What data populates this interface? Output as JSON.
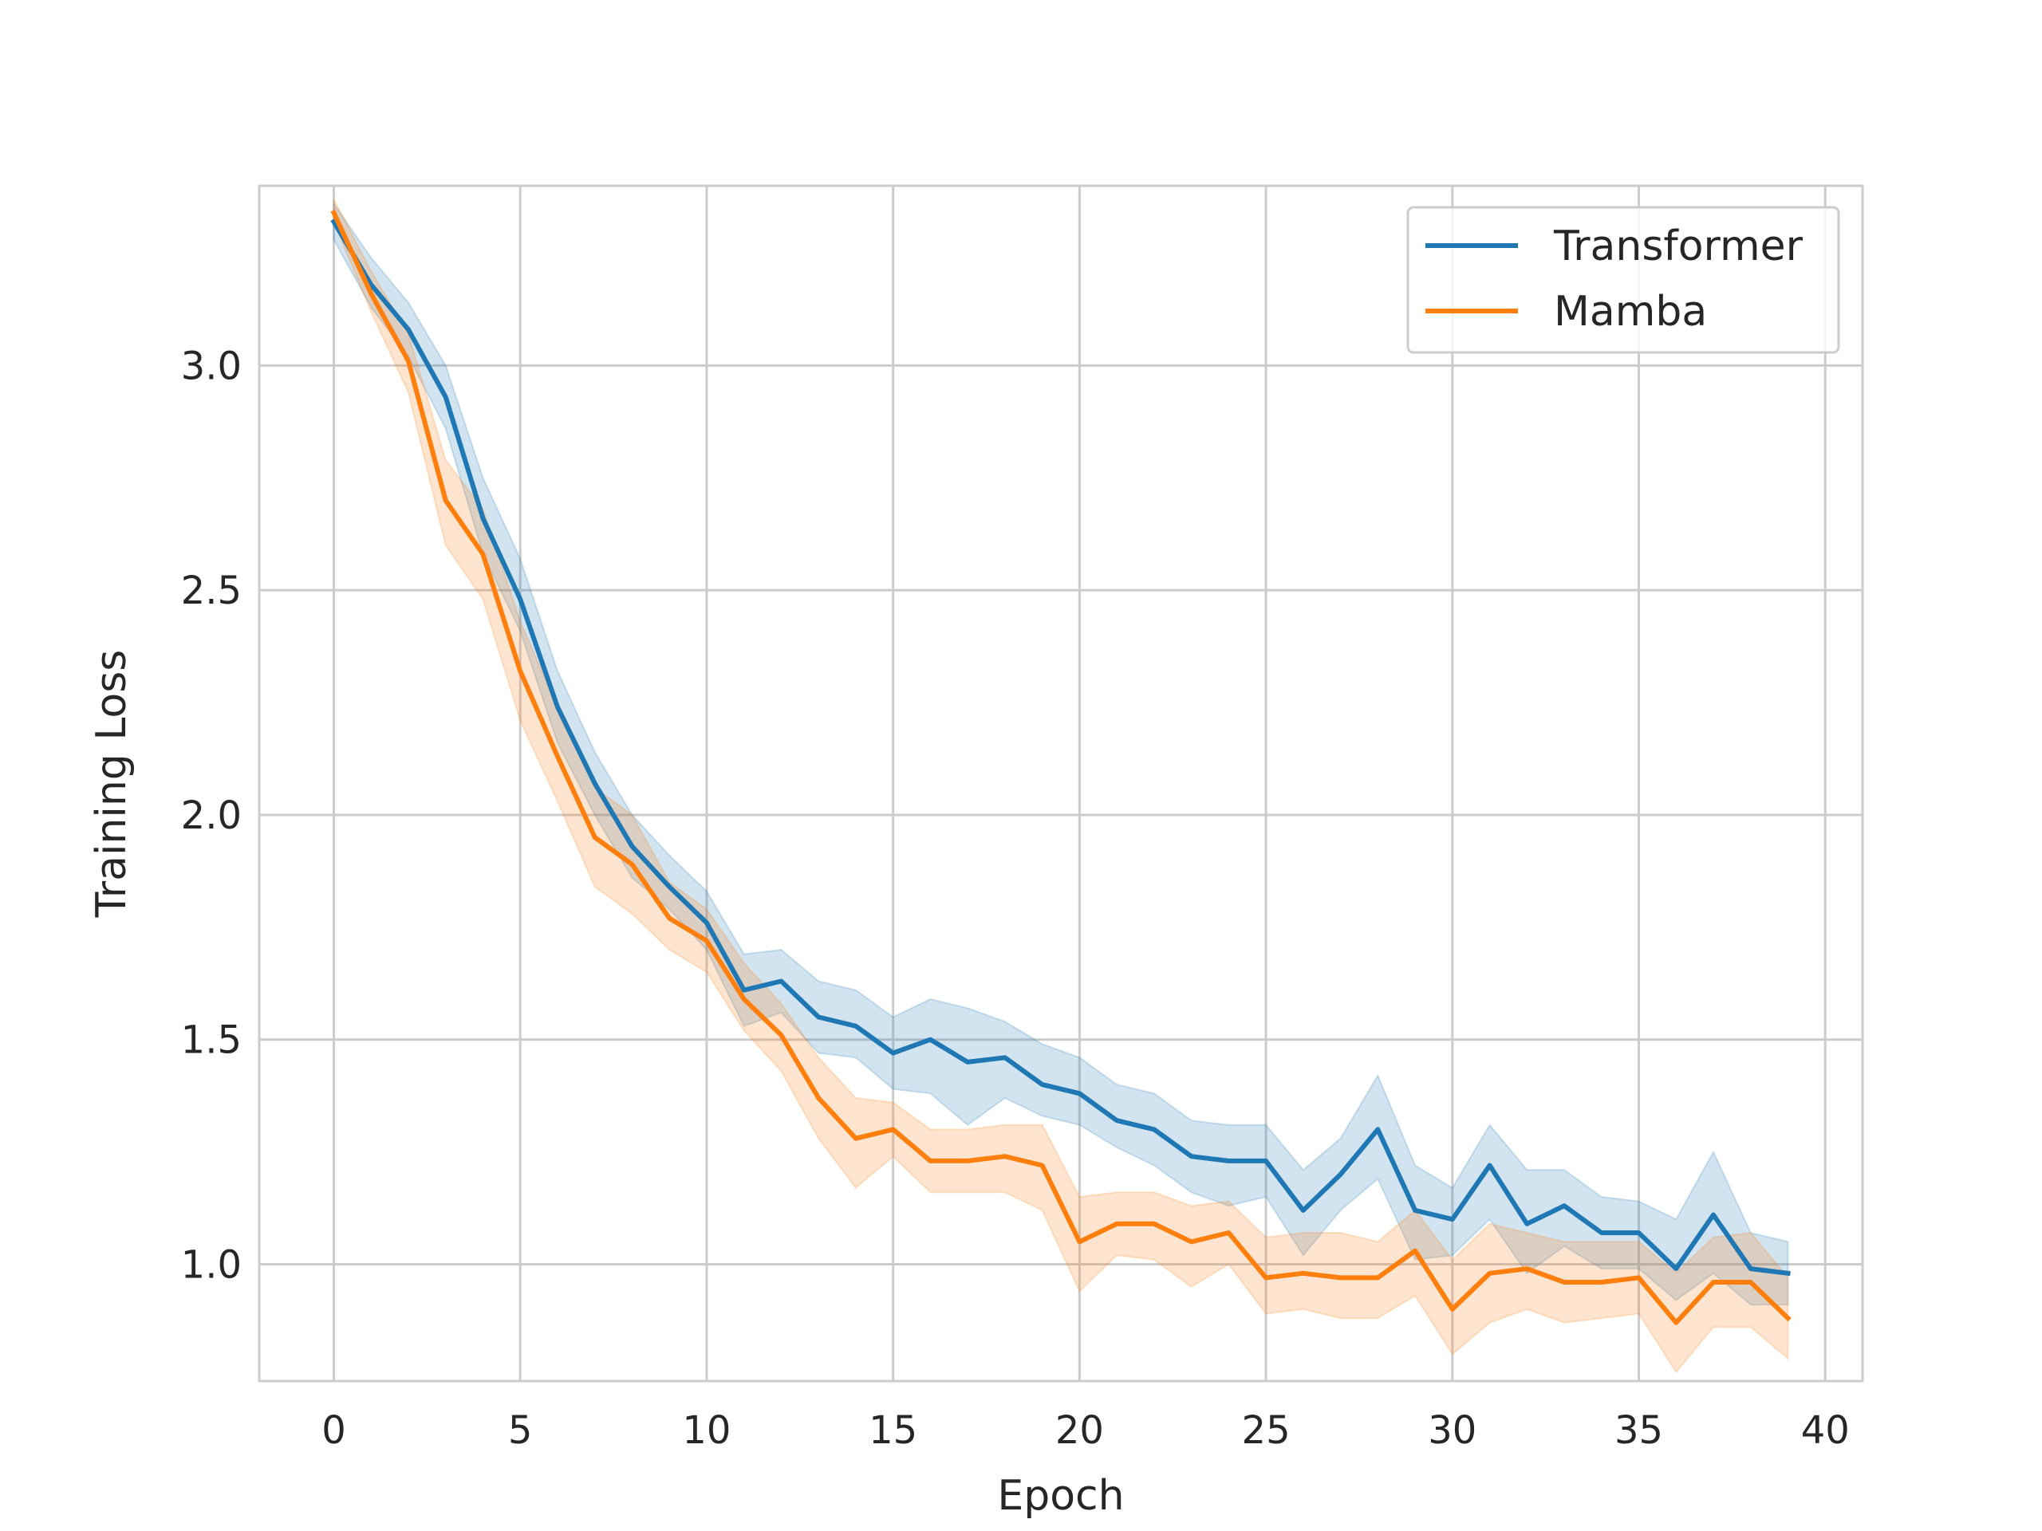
{
  "chart_data": {
    "type": "line",
    "title": "",
    "xlabel": "Epoch",
    "ylabel": "Training Loss",
    "xlim": [
      -2,
      41
    ],
    "ylim": [
      0.74,
      3.4
    ],
    "xticks": [
      0,
      5,
      10,
      15,
      20,
      25,
      30,
      35,
      40
    ],
    "yticks": [
      1.0,
      1.5,
      2.0,
      2.5,
      3.0
    ],
    "xtick_labels": [
      "0",
      "5",
      "10",
      "15",
      "20",
      "25",
      "30",
      "35",
      "40"
    ],
    "ytick_labels": [
      "1.0",
      "1.5",
      "2.0",
      "2.5",
      "3.0"
    ],
    "grid": true,
    "legend_position": "top-right",
    "x": [
      0,
      1,
      2,
      3,
      4,
      5,
      6,
      7,
      8,
      9,
      10,
      11,
      12,
      13,
      14,
      15,
      16,
      17,
      18,
      19,
      20,
      21,
      22,
      23,
      24,
      25,
      26,
      27,
      28,
      29,
      30,
      31,
      32,
      33,
      34,
      35,
      36,
      37,
      38,
      39
    ],
    "series": [
      {
        "name": "Transformer",
        "color": "#1f77b4",
        "band_color": "#1f77b4",
        "values": [
          3.32,
          3.18,
          3.08,
          2.93,
          2.66,
          2.48,
          2.24,
          2.07,
          1.93,
          1.84,
          1.76,
          1.61,
          1.63,
          1.55,
          1.53,
          1.47,
          1.5,
          1.45,
          1.46,
          1.4,
          1.38,
          1.32,
          1.3,
          1.24,
          1.23,
          1.23,
          1.12,
          1.2,
          1.3,
          1.12,
          1.1,
          1.22,
          1.09,
          1.13,
          1.07,
          1.07,
          0.99,
          1.11,
          0.99,
          0.98
        ],
        "lower": [
          3.28,
          3.13,
          3.02,
          2.86,
          2.58,
          2.41,
          2.16,
          2.0,
          1.86,
          1.79,
          1.7,
          1.53,
          1.56,
          1.47,
          1.46,
          1.39,
          1.38,
          1.31,
          1.37,
          1.33,
          1.31,
          1.26,
          1.22,
          1.16,
          1.13,
          1.15,
          1.02,
          1.12,
          1.19,
          1.01,
          1.02,
          1.1,
          0.98,
          1.04,
          0.99,
          0.99,
          0.92,
          0.98,
          0.91,
          0.91
        ],
        "upper": [
          3.36,
          3.24,
          3.14,
          3.0,
          2.75,
          2.57,
          2.32,
          2.14,
          2.0,
          1.91,
          1.83,
          1.69,
          1.7,
          1.63,
          1.61,
          1.55,
          1.59,
          1.57,
          1.54,
          1.49,
          1.46,
          1.4,
          1.38,
          1.32,
          1.31,
          1.31,
          1.21,
          1.28,
          1.42,
          1.22,
          1.17,
          1.31,
          1.21,
          1.21,
          1.15,
          1.14,
          1.1,
          1.25,
          1.07,
          1.05
        ]
      },
      {
        "name": "Mamba",
        "color": "#ff7f0e",
        "band_color": "#ff7f0e",
        "values": [
          3.34,
          3.16,
          3.01,
          2.7,
          2.58,
          2.32,
          2.13,
          1.95,
          1.89,
          1.77,
          1.72,
          1.59,
          1.51,
          1.37,
          1.28,
          1.3,
          1.23,
          1.23,
          1.24,
          1.22,
          1.05,
          1.09,
          1.09,
          1.05,
          1.07,
          0.97,
          0.98,
          0.97,
          0.97,
          1.03,
          0.9,
          0.98,
          0.99,
          0.96,
          0.96,
          0.97,
          0.87,
          0.96,
          0.96,
          0.88
        ],
        "lower": [
          3.32,
          3.12,
          2.94,
          2.6,
          2.48,
          2.21,
          2.03,
          1.84,
          1.78,
          1.7,
          1.65,
          1.52,
          1.43,
          1.28,
          1.17,
          1.24,
          1.16,
          1.16,
          1.16,
          1.12,
          0.94,
          1.02,
          1.01,
          0.95,
          1.0,
          0.89,
          0.9,
          0.88,
          0.88,
          0.93,
          0.8,
          0.87,
          0.9,
          0.87,
          0.88,
          0.89,
          0.76,
          0.86,
          0.86,
          0.79
        ],
        "upper": [
          3.37,
          3.21,
          3.07,
          2.79,
          2.68,
          2.43,
          2.24,
          2.06,
          2.0,
          1.85,
          1.79,
          1.67,
          1.58,
          1.46,
          1.37,
          1.36,
          1.3,
          1.3,
          1.31,
          1.31,
          1.15,
          1.16,
          1.16,
          1.13,
          1.14,
          1.06,
          1.07,
          1.07,
          1.05,
          1.12,
          1.01,
          1.09,
          1.07,
          1.05,
          1.05,
          1.05,
          0.98,
          1.06,
          1.07,
          0.97
        ]
      }
    ]
  }
}
